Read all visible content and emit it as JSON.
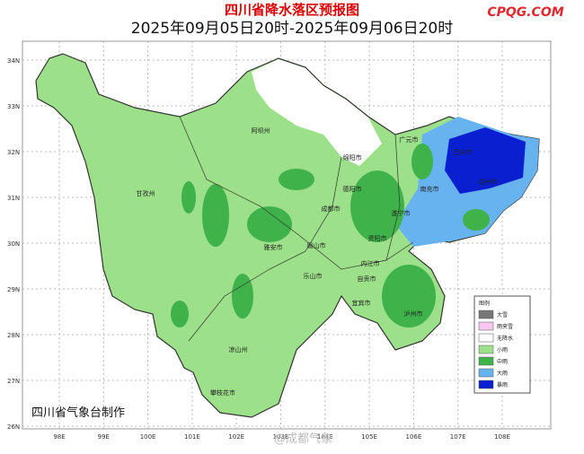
{
  "header": {
    "title": "四川省降水落区预报图",
    "subtitle": "2025年09月05日20时-2025年09月06日20时",
    "watermark": "CPQG.COM"
  },
  "map": {
    "lat_labels": [
      "34N",
      "33N",
      "32N",
      "31N",
      "30N",
      "29N",
      "28N",
      "27N",
      "26N"
    ],
    "lon_labels": [
      "98E",
      "99E",
      "100E",
      "101E",
      "102E",
      "103E",
      "104E",
      "105E",
      "106E",
      "107E",
      "108E"
    ],
    "places": [
      "阿坝州",
      "绵阳市",
      "广元市",
      "巴中市",
      "达州市",
      "南充市",
      "德阳市",
      "成都市",
      "遂宁市",
      "甘孜州",
      "雅安市",
      "眉山市",
      "资阳市",
      "内江市",
      "乐山市",
      "自贡市",
      "宜宾市",
      "泸州市",
      "凉山州",
      "攀枝花市"
    ]
  },
  "legend": {
    "title": "图例",
    "items": [
      "大雪",
      "雨夹雪",
      "无降水",
      "小雨",
      "中雨",
      "大雨",
      "暴雨"
    ]
  },
  "footer": {
    "credit": "四川省气象台制作",
    "weibo": "@成都气象"
  }
}
